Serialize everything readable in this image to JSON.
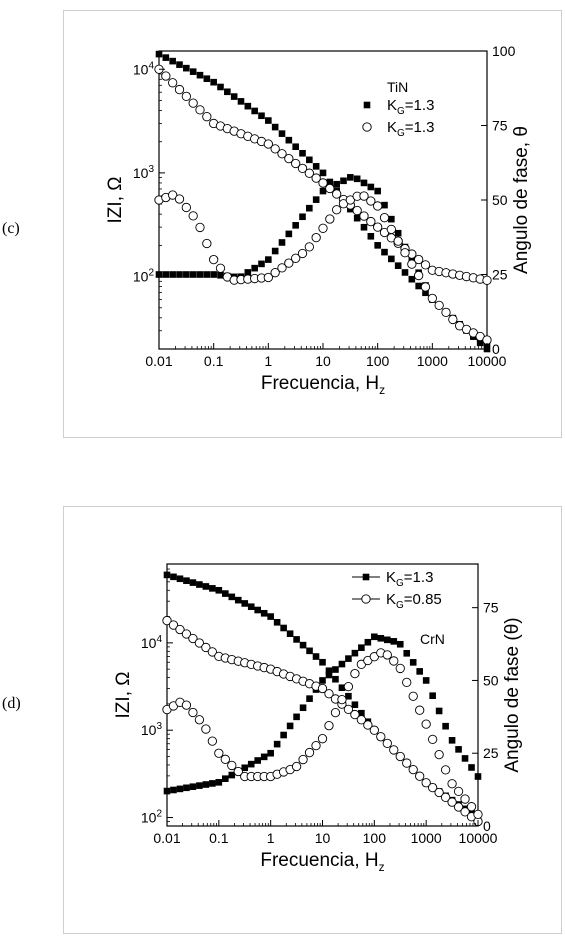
{
  "panels": [
    {
      "label": "(c)"
    },
    {
      "label": "(d)"
    }
  ],
  "chart_data": [
    {
      "type": "scatter",
      "legend_title": "TiN",
      "legend_placement": "top-right",
      "xlabel": "Frecuencia, H",
      "xlabel_sub": "z",
      "ylabel_left": "IZI, Ω",
      "ylabel_right": "Angulo de fase, θ",
      "x_scale": "log",
      "y_left_scale": "log",
      "xlim": [
        0.01,
        10000
      ],
      "ylim_left": [
        20,
        15000
      ],
      "ylim_right": [
        0,
        100
      ],
      "x_ticks": [
        "0.01",
        "0.1",
        "1",
        "10",
        "100",
        "1000",
        "10000"
      ],
      "y_left_ticks": [
        {
          "base": "10",
          "exp": "2",
          "value": 100
        },
        {
          "base": "10",
          "exp": "3",
          "value": 1000
        },
        {
          "base": "10",
          "exp": "4",
          "value": 10000
        }
      ],
      "y_right_ticks": [
        "0",
        "25",
        "50",
        "75",
        "100"
      ],
      "series": [
        {
          "legend_main": "K",
          "legend_sub": "G",
          "legend_rest": "=1.3",
          "marker": "filled-square",
          "z_points": [
            [
              0.01,
              14000
            ],
            [
              0.1,
              7500
            ],
            [
              1,
              3200
            ],
            [
              10,
              1000
            ],
            [
              100,
              200
            ],
            [
              1000,
              60
            ],
            [
              10000,
              20
            ]
          ],
          "phase_points": [
            [
              0.01,
              25
            ],
            [
              0.1,
              25
            ],
            [
              0.3,
              24
            ],
            [
              1,
              30
            ],
            [
              10,
              53
            ],
            [
              35,
              58
            ],
            [
              100,
              53
            ],
            [
              300,
              35
            ],
            [
              1000,
              17
            ],
            [
              3000,
              8
            ],
            [
              10000,
              2
            ]
          ]
        },
        {
          "legend_main": "K",
          "legend_sub": "G",
          "legend_rest": "=1.3",
          "marker": "open-circle",
          "z_points": [
            [
              0.01,
              10000
            ],
            [
              0.1,
              3000
            ],
            [
              1,
              1900
            ],
            [
              10,
              800
            ],
            [
              100,
              300
            ],
            [
              1000,
              115
            ],
            [
              10000,
              92
            ]
          ],
          "phase_points": [
            [
              0.01,
              50
            ],
            [
              0.02,
              52
            ],
            [
              0.05,
              43
            ],
            [
              0.1,
              30
            ],
            [
              0.2,
              23
            ],
            [
              1,
              24
            ],
            [
              5,
              33
            ],
            [
              20,
              48
            ],
            [
              50,
              52
            ],
            [
              100,
              48
            ],
            [
              300,
              33
            ],
            [
              1000,
              17
            ],
            [
              3000,
              8
            ],
            [
              10000,
              3
            ]
          ]
        }
      ]
    },
    {
      "type": "scatter",
      "legend_title": "CrN",
      "legend_placement": "top-right",
      "xlabel": "Frecuencia, H",
      "xlabel_sub": "z",
      "ylabel_left": "IZI, Ω",
      "ylabel_right": "Angulo de fase (θ)",
      "x_scale": "log",
      "y_left_scale": "log",
      "xlim": [
        0.01,
        10000
      ],
      "ylim_left": [
        80,
        80000
      ],
      "ylim_right": [
        0,
        90
      ],
      "x_ticks": [
        "0.01",
        "0.1",
        "1",
        "10",
        "100",
        "1000",
        "10000"
      ],
      "y_left_ticks": [
        {
          "base": "10",
          "exp": "2",
          "value": 100
        },
        {
          "base": "10",
          "exp": "3",
          "value": 1000
        },
        {
          "base": "10",
          "exp": "4",
          "value": 10000
        }
      ],
      "y_right_ticks": [
        "0",
        "25",
        "50",
        "75"
      ],
      "series": [
        {
          "legend_main": "K",
          "legend_sub": "G",
          "legend_rest": "=1.3",
          "marker": "filled-square",
          "z_points": [
            [
              0.01,
              60000
            ],
            [
              0.1,
              40000
            ],
            [
              1,
              20000
            ],
            [
              10,
              6000
            ],
            [
              100,
              1000
            ],
            [
              1000,
              250
            ],
            [
              10000,
              100
            ]
          ],
          "phase_points": [
            [
              0.01,
              12
            ],
            [
              0.1,
              15
            ],
            [
              1,
              25
            ],
            [
              10,
              50
            ],
            [
              100,
              65
            ],
            [
              300,
              63
            ],
            [
              1000,
              50
            ],
            [
              3000,
              30
            ],
            [
              10000,
              17
            ]
          ]
        },
        {
          "legend_main": "K",
          "legend_sub": "G",
          "legend_rest": "=0.85",
          "marker": "open-circle",
          "z_points": [
            [
              0.01,
              18000
            ],
            [
              0.1,
              7000
            ],
            [
              1,
              5000
            ],
            [
              10,
              3000
            ],
            [
              100,
              1000
            ],
            [
              1000,
              250
            ],
            [
              10000,
              90
            ]
          ],
          "phase_points": [
            [
              0.01,
              40
            ],
            [
              0.02,
              43
            ],
            [
              0.05,
              35
            ],
            [
              0.1,
              25
            ],
            [
              0.3,
              17
            ],
            [
              1,
              17
            ],
            [
              3,
              20
            ],
            [
              10,
              30
            ],
            [
              50,
              55
            ],
            [
              150,
              60
            ],
            [
              300,
              55
            ],
            [
              1000,
              35
            ],
            [
              3000,
              15
            ],
            [
              10000,
              4
            ]
          ]
        }
      ]
    }
  ]
}
